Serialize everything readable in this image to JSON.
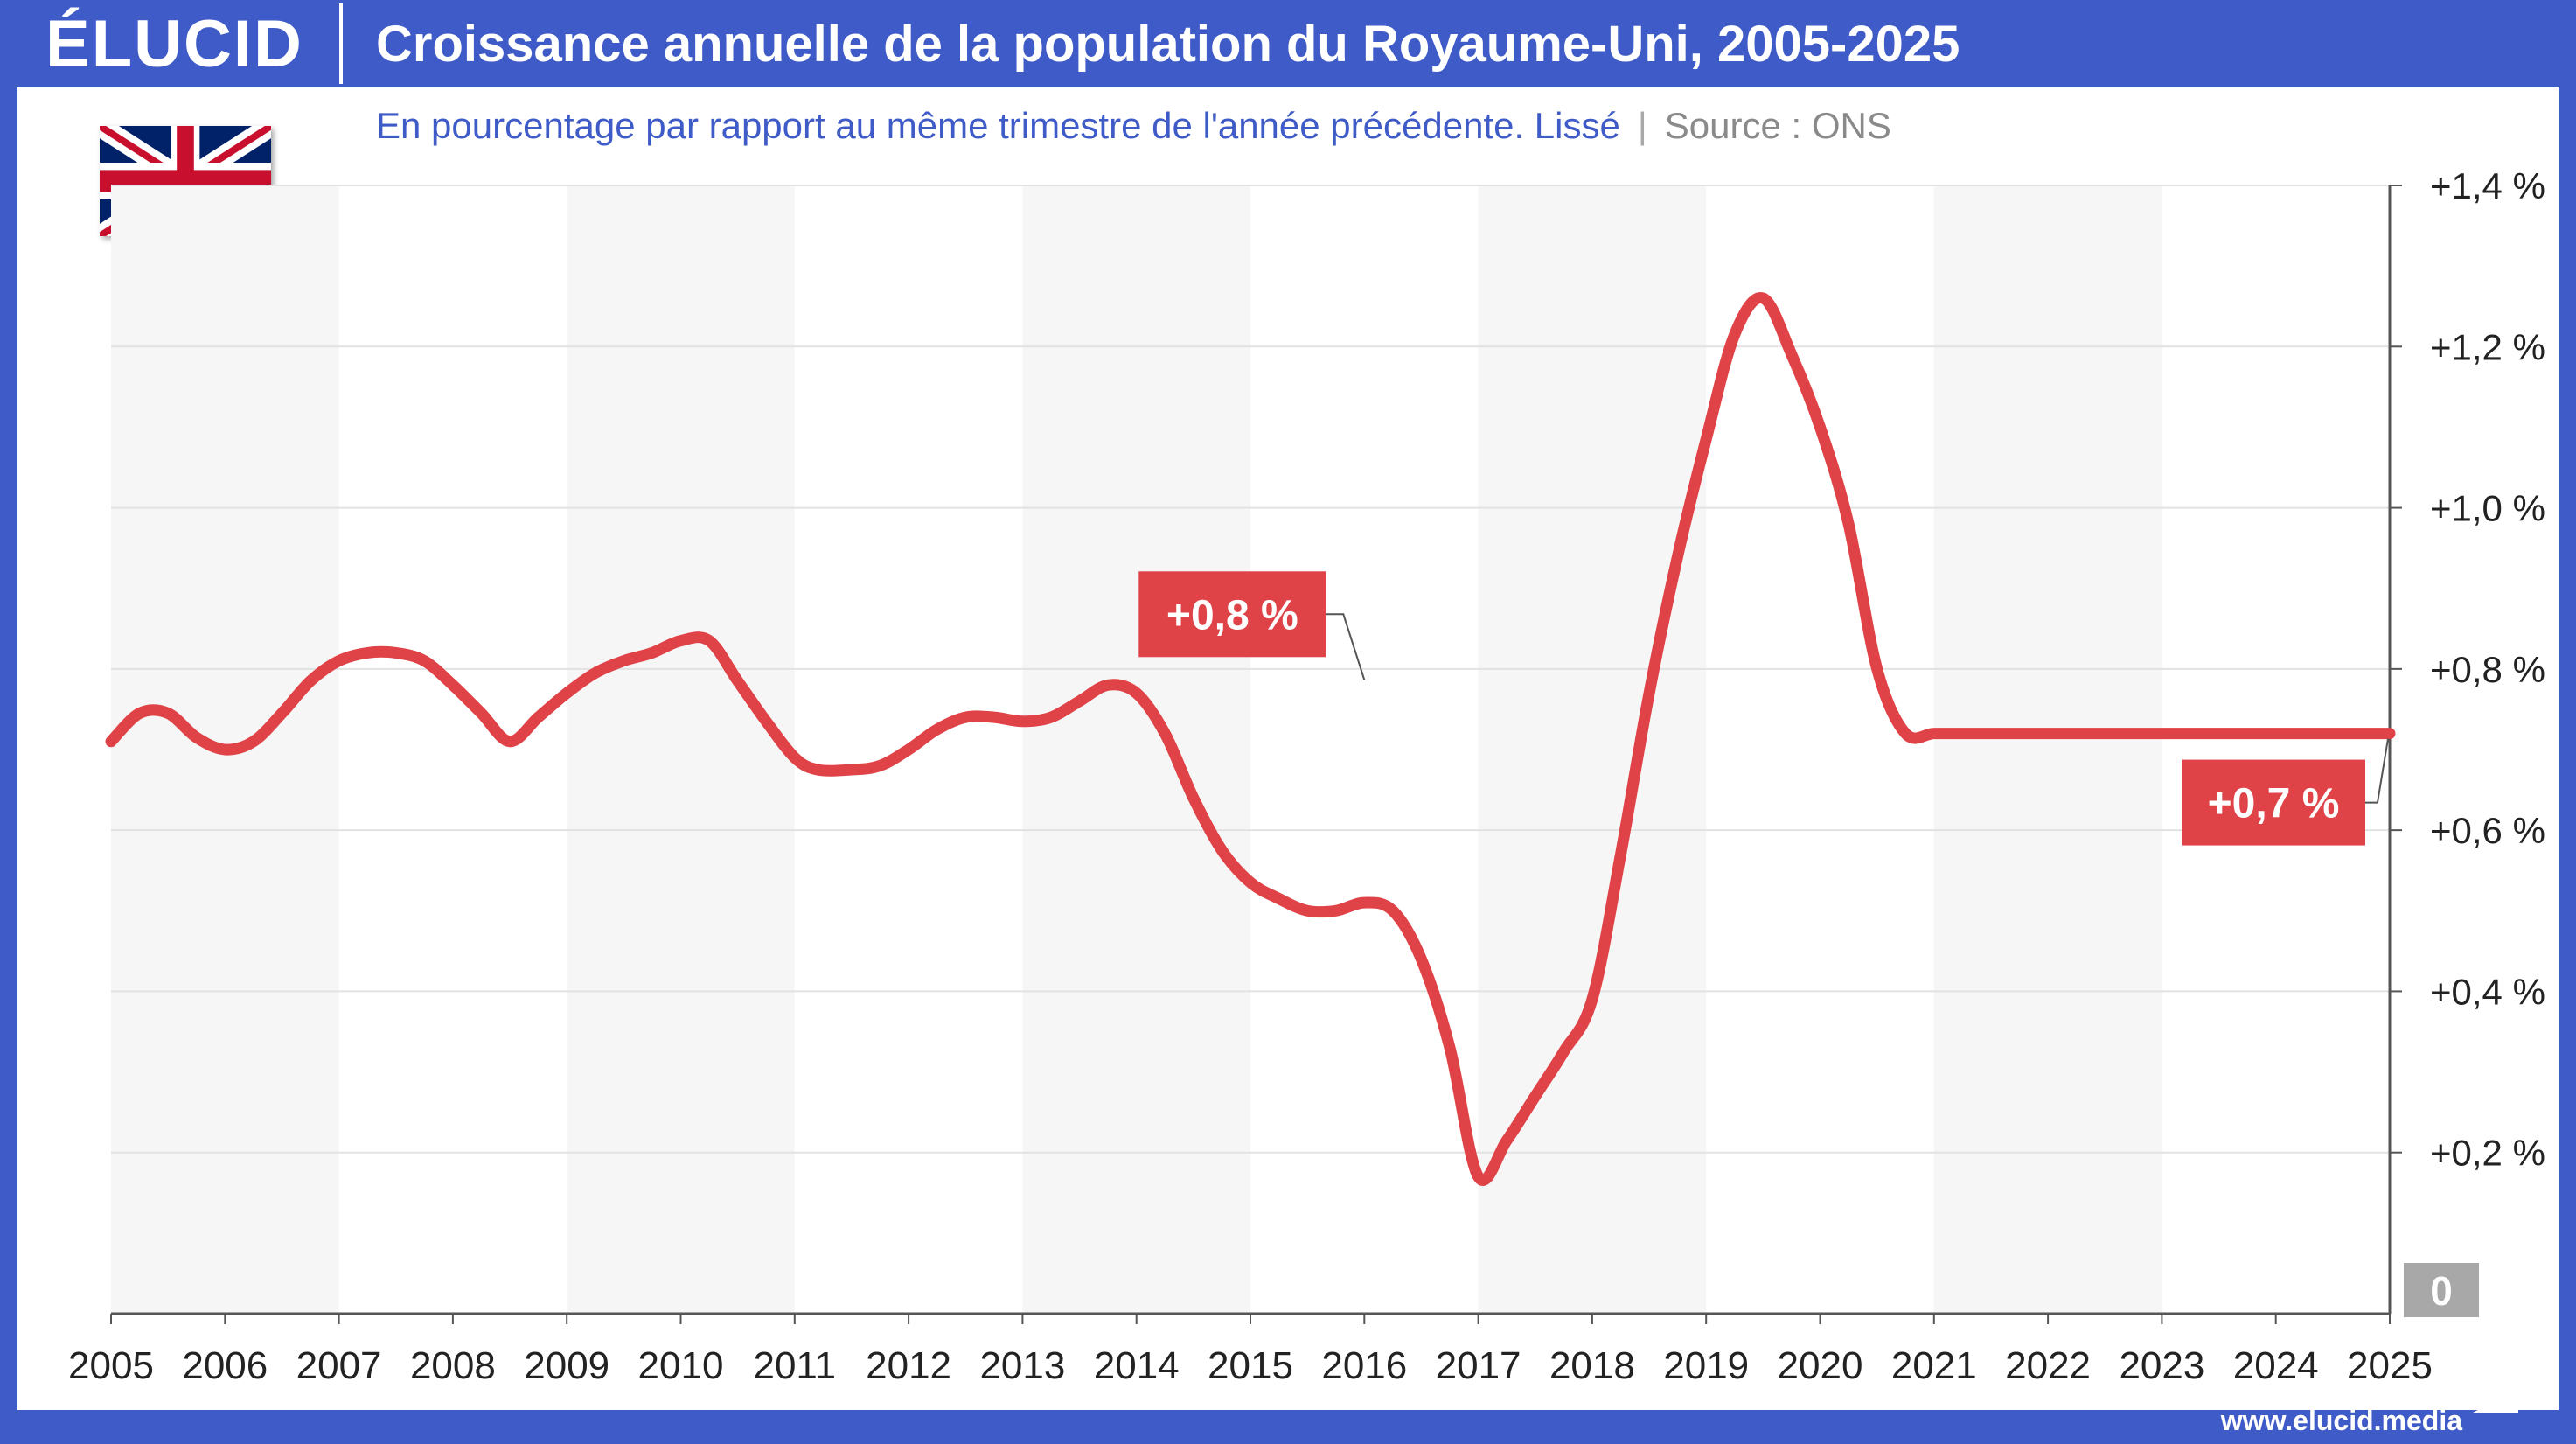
{
  "header": {
    "logo": "ÉLUCID",
    "title": "Croissance annuelle de la population du Royaume-Uni, 2005-2025"
  },
  "subtitle": "En pourcentage par rapport au même trimestre de l'année précédente. Lissé",
  "subtitle_separator": "|",
  "source": "Source : ONS",
  "flag": "united-kingdom-flag-icon",
  "footer": {
    "url": "www.elucid.media"
  },
  "colors": {
    "brand_blue": "#3f5bc7",
    "line_red": "#e04347",
    "label_red": "#e04347",
    "band_gray": "#f6f6f6",
    "grid": "#e2e2e2",
    "zero_box": "#a8a8a8"
  },
  "chart_data": {
    "type": "line",
    "title": "Croissance annuelle de la population du Royaume-Uni, 2005-2025",
    "subtitle": "En pourcentage par rapport au même trimestre de l'année précédente. Lissé",
    "xlabel": "",
    "ylabel": "",
    "xlim": [
      2005,
      2025
    ],
    "ylim": [
      0,
      1.4
    ],
    "y_ticks": [
      0.2,
      0.4,
      0.6,
      0.8,
      1.0,
      1.2,
      1.4
    ],
    "y_tick_labels": [
      "+0,2 %",
      "+0,4 %",
      "+0,6 %",
      "+0,8 %",
      "+1,0 %",
      "+1,2 %",
      "+1,4 %"
    ],
    "zero_label": "0",
    "x_ticks": [
      2005,
      2006,
      2007,
      2008,
      2009,
      2010,
      2011,
      2012,
      2013,
      2014,
      2015,
      2016,
      2017,
      2018,
      2019,
      2020,
      2021,
      2022,
      2023,
      2024,
      2025
    ],
    "x_tick_labels": [
      "2005",
      "2006",
      "2007",
      "2008",
      "2009",
      "2010",
      "2011",
      "2012",
      "2013",
      "2014",
      "2015",
      "2016",
      "2017",
      "2018",
      "2019",
      "2020",
      "2021",
      "2022",
      "2023",
      "2024",
      "2025"
    ],
    "y_axis_side": "right",
    "grid": true,
    "alternating_year_bands": true,
    "series": [
      {
        "x": [
          2005.0,
          2005.25,
          2005.5,
          2005.75,
          2006.0,
          2006.25,
          2006.5,
          2006.75,
          2007.0,
          2007.25,
          2007.5,
          2007.75,
          2008.0,
          2008.25,
          2008.5,
          2008.75,
          2009.0,
          2009.25,
          2009.5,
          2009.75,
          2010.0,
          2010.25,
          2010.5,
          2010.75,
          2011.0,
          2011.2,
          2011.5,
          2011.75,
          2012.0,
          2012.25,
          2012.5,
          2012.75,
          2013.0,
          2013.25,
          2013.5,
          2013.75,
          2014.0,
          2014.25,
          2014.5,
          2014.75,
          2015.0,
          2015.25,
          2015.5,
          2015.75,
          2016.0,
          2016.25,
          2016.5,
          2016.75,
          2017.0,
          2017.25,
          2017.5,
          2017.75,
          2018.0,
          2018.25,
          2018.5,
          2018.75,
          2019.0,
          2019.25,
          2019.5,
          2019.75,
          2020.0,
          2020.25,
          2020.5,
          2020.75,
          2021.0,
          2021.25,
          2021.5,
          2021.75,
          2022.0,
          2022.25,
          2022.5,
          2022.75,
          2023.0,
          2023.25,
          2023.5,
          2023.75,
          2024.0,
          2024.25,
          2024.5,
          2024.75,
          2025.0
        ],
        "y": [
          0.71,
          0.745,
          0.745,
          0.715,
          0.7,
          0.71,
          0.745,
          0.785,
          0.81,
          0.82,
          0.82,
          0.81,
          0.78,
          0.745,
          0.71,
          0.74,
          0.77,
          0.795,
          0.81,
          0.82,
          0.835,
          0.835,
          0.785,
          0.735,
          0.69,
          0.675,
          0.675,
          0.68,
          0.7,
          0.725,
          0.74,
          0.74,
          0.735,
          0.74,
          0.76,
          0.78,
          0.77,
          0.72,
          0.64,
          0.575,
          0.535,
          0.515,
          0.5,
          0.5,
          0.51,
          0.5,
          0.44,
          0.33,
          0.17,
          0.215,
          0.27,
          0.325,
          0.39,
          0.57,
          0.77,
          0.94,
          1.085,
          1.215,
          1.26,
          1.19,
          1.1,
          0.98,
          0.8,
          0.72,
          0.72,
          0.72,
          0.72,
          0.72,
          0.72,
          0.72,
          0.72,
          0.72,
          0.72,
          0.72,
          0.72,
          0.72,
          0.72,
          0.72,
          0.72,
          0.72,
          0.72
        ]
      }
    ],
    "annotations": [
      {
        "text": "+0,8 %",
        "x": 2016.0,
        "y": 0.78
      },
      {
        "text": "+0,7 %",
        "x": 2025.0,
        "y": 0.72
      }
    ]
  }
}
